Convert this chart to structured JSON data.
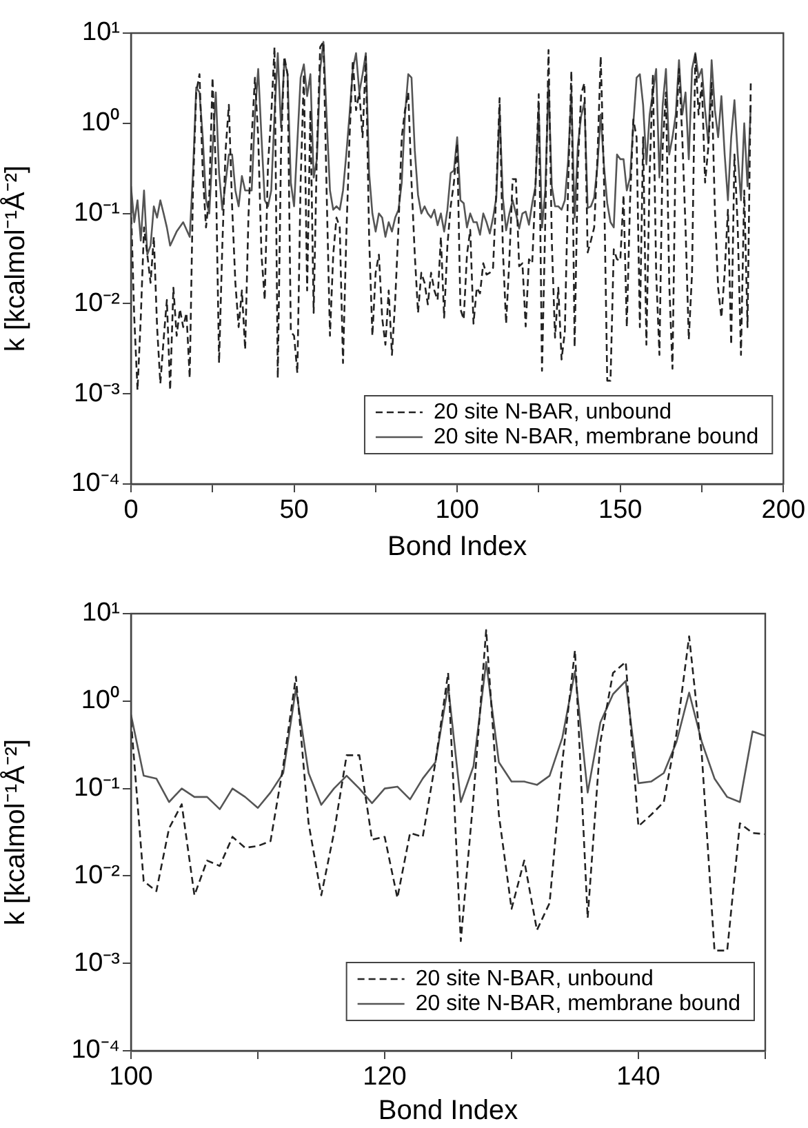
{
  "chart_data": [
    {
      "type": "line",
      "xlabel": "Bond Index",
      "ylabel": "k [kcalmol⁻¹Å⁻²]",
      "log": "y",
      "xlim": [
        0,
        200
      ],
      "ylim": [
        0.0001,
        10
      ],
      "xticks": [
        0,
        {
          "value": 25,
          "label": null
        },
        50,
        {
          "value": 75,
          "label": null
        },
        100,
        {
          "value": 125,
          "label": null
        },
        150,
        {
          "value": 175,
          "label": null
        },
        200
      ],
      "yticks": [
        {
          "value": 0.0001,
          "label": "10⁻⁴"
        },
        {
          "value": 0.001,
          "label": "10⁻³"
        },
        {
          "value": 0.01,
          "label": "10⁻²"
        },
        {
          "value": 0.1,
          "label": "10⁻¹"
        },
        {
          "value": 1,
          "label": "10⁰"
        },
        {
          "value": 10,
          "label": "10¹"
        }
      ],
      "grid": false,
      "legend": "bottom right",
      "marker": "none",
      "series": [
        {
          "name": "20 site N-BAR, unbound",
          "color": "#222222",
          "line_style": "dashed",
          "x": [
            0,
            1,
            2,
            3,
            4,
            5,
            6,
            7,
            8,
            9,
            10,
            11,
            12,
            13,
            14,
            15,
            16,
            17,
            18,
            19,
            20,
            21,
            22,
            23,
            24,
            25,
            26,
            27,
            28,
            29,
            30,
            31,
            32,
            33,
            34,
            35,
            36,
            37,
            38,
            39,
            40,
            41,
            42,
            43,
            44,
            45,
            46,
            47,
            48,
            49,
            50,
            51,
            52,
            53,
            54,
            55,
            56,
            57,
            58,
            59,
            60,
            61,
            62,
            63,
            64,
            65,
            66,
            67,
            68,
            69,
            70,
            71,
            72,
            73,
            74,
            75,
            76,
            77,
            78,
            79,
            80,
            81,
            82,
            83,
            84,
            85,
            86,
            87,
            88,
            89,
            90,
            91,
            92,
            93,
            94,
            95,
            96,
            97,
            98,
            99,
            100,
            101,
            102,
            103,
            104,
            105,
            106,
            107,
            108,
            109,
            110,
            111,
            112,
            113,
            114,
            115,
            116,
            117,
            118,
            119,
            120,
            121,
            122,
            123,
            124,
            125,
            126,
            127,
            128,
            129,
            130,
            131,
            132,
            133,
            134,
            135,
            136,
            137,
            138,
            139,
            140,
            141,
            142,
            143,
            144,
            145,
            146,
            147,
            148,
            149,
            150,
            151,
            152,
            153,
            154,
            155,
            156,
            157,
            158,
            159,
            160,
            161,
            162,
            163,
            164,
            165,
            166,
            167,
            168,
            169,
            170,
            171,
            172,
            173,
            174,
            175,
            176,
            177,
            178,
            179,
            180,
            181,
            182,
            183,
            184,
            185,
            186,
            187,
            188,
            189,
            190
          ],
          "values": [
            0.12,
            0.007,
            0.0011,
            0.007,
            0.07,
            0.035,
            0.017,
            0.055,
            0.0055,
            0.0013,
            0.004,
            0.011,
            0.0011,
            0.015,
            0.0044,
            0.0087,
            0.0055,
            0.0079,
            0.0015,
            0.18,
            2.2,
            3.5,
            0.28,
            0.07,
            0.16,
            3.2,
            0.31,
            0.0022,
            0.044,
            0.5,
            1.6,
            0.12,
            0.017,
            0.0055,
            0.014,
            0.0031,
            0.09,
            0.7,
            3.2,
            0.7,
            0.035,
            0.011,
            0.35,
            1.25,
            7,
            0.0015,
            0.5,
            5.5,
            3.5,
            0.0049,
            0.0044,
            0.0017,
            0.22,
            3.5,
            0.014,
            1.4,
            0.0079,
            0.5,
            7,
            8,
            0.16,
            0.0044,
            0.035,
            0.09,
            0.07,
            0.0022,
            0.055,
            0.7,
            5,
            1.4,
            2.2,
            0.7,
            5.5,
            0.055,
            0.0044,
            0.022,
            0.035,
            0.007,
            0.0035,
            0.014,
            0.0027,
            0.011,
            0.07,
            0.7,
            1.4,
            2.2,
            0.22,
            0.035,
            0.0079,
            0.022,
            0.017,
            0.0098,
            0.022,
            0.014,
            0.011,
            0.055,
            0.007,
            0.044,
            0.12,
            0.22,
            0.6,
            0.0087,
            0.0067,
            0.035,
            0.066,
            0.006,
            0.015,
            0.013,
            0.028,
            0.021,
            0.022,
            0.025,
            0.18,
            1.9,
            0.04,
            0.006,
            0.031,
            0.24,
            0.24,
            0.026,
            0.028,
            0.0056,
            0.031,
            0.028,
            0.2,
            2.1,
            0.0018,
            0.08,
            6.5,
            0.05,
            0.0042,
            0.015,
            0.0024,
            0.0049,
            0.2,
            3.8,
            0.0033,
            0.34,
            2.1,
            2.8,
            0.037,
            0.05,
            0.07,
            0.42,
            5.5,
            0.24,
            0.0014,
            0.0014,
            0.04,
            0.031,
            0.03,
            0.16,
            0.0055,
            0.14,
            1.1,
            0.7,
            0.0055,
            0.7,
            0.0035,
            0.28,
            3.5,
            0.022,
            0.0027,
            0.55,
            2.2,
            0.017,
            0.0019,
            0.7,
            4,
            0.7,
            0.07,
            0.004,
            0.022,
            6,
            1.25,
            2.8,
            0.22,
            0.55,
            2.8,
            0.11,
            0.015,
            0.007,
            0.022,
            0.11,
            0.0035,
            0.45,
            0.07,
            0.0027,
            0.18,
            0.0055,
            2.8
          ]
        },
        {
          "name": "20 site N-BAR, membrane bound",
          "color": "#555555",
          "line_style": "solid",
          "x": [
            0,
            1,
            2,
            3,
            4,
            5,
            6,
            7,
            8,
            9,
            10,
            11,
            12,
            14,
            16,
            18,
            19,
            20,
            21,
            22,
            23,
            24,
            25,
            26,
            27,
            28,
            29,
            30,
            31,
            32,
            33,
            34,
            35,
            36,
            37,
            38,
            39,
            40,
            41,
            42,
            43,
            44,
            45,
            46,
            47,
            48,
            49,
            50,
            52,
            53,
            54,
            55,
            56,
            57,
            58,
            59,
            60,
            61,
            62,
            63,
            64,
            65,
            66,
            67,
            68,
            69,
            70,
            71,
            72,
            73,
            74,
            75,
            76,
            77,
            78,
            79,
            80,
            81,
            82,
            83,
            84,
            85,
            86,
            87,
            88,
            89,
            90,
            91,
            92,
            93,
            94,
            95,
            96,
            97,
            98,
            99,
            100,
            101,
            102,
            103,
            104,
            105,
            106,
            107,
            108,
            109,
            110,
            111,
            112,
            113,
            114,
            115,
            116,
            117,
            118,
            119,
            120,
            121,
            122,
            123,
            124,
            125,
            126,
            127,
            128,
            129,
            130,
            131,
            132,
            133,
            134,
            135,
            136,
            137,
            138,
            139,
            140,
            141,
            142,
            143,
            144,
            145,
            146,
            147,
            148,
            149,
            150,
            151,
            152,
            153,
            154,
            155,
            156,
            157,
            158,
            159,
            160,
            161,
            162,
            163,
            164,
            165,
            166,
            167,
            168,
            169,
            170,
            171,
            172,
            173,
            174,
            175,
            176,
            177,
            178,
            179,
            180,
            181,
            182,
            183,
            184,
            185,
            186,
            187,
            188,
            189,
            190
          ],
          "values": [
            0.2,
            0.08,
            0.14,
            0.05,
            0.18,
            0.035,
            0.044,
            0.12,
            0.09,
            0.14,
            0.1,
            0.07,
            0.044,
            0.063,
            0.08,
            0.055,
            0.28,
            2.5,
            2.2,
            0.7,
            0.14,
            0.1,
            0.5,
            2.2,
            0.28,
            0.11,
            0.22,
            0.45,
            0.45,
            0.18,
            0.12,
            0.26,
            0.18,
            0.18,
            0.18,
            1.25,
            4,
            0.7,
            0.14,
            0.12,
            0.18,
            1.25,
            6,
            0.9,
            5,
            3.5,
            0.22,
            0.12,
            3.2,
            4.5,
            2,
            3.5,
            0.25,
            0.4,
            4,
            8,
            1.1,
            0.18,
            0.11,
            0.12,
            0.11,
            0.18,
            0.45,
            1.25,
            4,
            6,
            2.2,
            3.5,
            6,
            0.28,
            0.1,
            0.063,
            0.1,
            0.09,
            0.055,
            0.08,
            0.063,
            0.09,
            0.11,
            0.22,
            1.25,
            3.5,
            3.2,
            0.5,
            0.16,
            0.1,
            0.12,
            0.1,
            0.09,
            0.11,
            0.074,
            0.1,
            0.063,
            0.11,
            0.28,
            0.3,
            0.7,
            0.14,
            0.13,
            0.07,
            0.1,
            0.08,
            0.08,
            0.058,
            0.1,
            0.08,
            0.06,
            0.09,
            0.15,
            1.4,
            0.15,
            0.065,
            0.1,
            0.14,
            0.1,
            0.068,
            0.1,
            0.105,
            0.075,
            0.13,
            0.2,
            1.5,
            0.07,
            0.18,
            2.8,
            0.2,
            0.12,
            0.12,
            0.11,
            0.14,
            0.38,
            2.2,
            0.09,
            0.57,
            1.2,
            1.7,
            0.115,
            0.12,
            0.15,
            0.34,
            1.25,
            0.34,
            0.13,
            0.08,
            0.07,
            0.45,
            0.4,
            0.4,
            0.18,
            0.25,
            1,
            3.2,
            3.5,
            1.6,
            0.35,
            1.25,
            2.2,
            4,
            0.25,
            1.6,
            4,
            0.45,
            0.7,
            1.25,
            5,
            1.25,
            2.2,
            0.4,
            4,
            6,
            3.2,
            4,
            1.4,
            0.6,
            5,
            1.4,
            0.7,
            2,
            0.45,
            0.14,
            0.7,
            1.8,
            0.45,
            0.14,
            1,
            0.2,
            1.6
          ]
        }
      ]
    },
    {
      "type": "line",
      "xlabel": "Bond Index",
      "ylabel": "k [kcalmol⁻¹Å⁻²]",
      "log": "y",
      "xlim": [
        100,
        150
      ],
      "ylim": [
        0.0001,
        10
      ],
      "xticks": [
        100,
        {
          "value": 110,
          "label": null
        },
        120,
        {
          "value": 130,
          "label": null
        },
        140,
        {
          "value": 150,
          "label": null
        }
      ],
      "yticks": [
        {
          "value": 0.0001,
          "label": "10⁻⁴"
        },
        {
          "value": 0.001,
          "label": "10⁻³"
        },
        {
          "value": 0.01,
          "label": "10⁻²"
        },
        {
          "value": 0.1,
          "label": "10⁻¹"
        },
        {
          "value": 1,
          "label": "10⁰"
        },
        {
          "value": 10,
          "label": "10¹"
        }
      ],
      "grid": false,
      "legend": "bottom right",
      "marker": "none",
      "x": [
        100,
        101,
        102,
        103,
        104,
        105,
        106,
        107,
        108,
        109,
        110,
        111,
        112,
        113,
        114,
        115,
        116,
        117,
        118,
        119,
        120,
        121,
        122,
        123,
        124,
        125,
        126,
        127,
        128,
        129,
        130,
        131,
        132,
        133,
        134,
        135,
        136,
        137,
        138,
        139,
        140,
        141,
        142,
        143,
        144,
        145,
        146,
        147,
        148,
        149,
        150
      ],
      "series": [
        {
          "name": "20 site N-BAR, unbound",
          "color": "#222222",
          "line_style": "dashed",
          "values": [
            0.6,
            0.0087,
            0.0067,
            0.035,
            0.066,
            0.006,
            0.015,
            0.013,
            0.028,
            0.021,
            0.022,
            0.025,
            0.18,
            1.9,
            0.04,
            0.006,
            0.031,
            0.24,
            0.24,
            0.026,
            0.028,
            0.0056,
            0.031,
            0.028,
            0.2,
            2.1,
            0.0018,
            0.08,
            6.5,
            0.05,
            0.0042,
            0.015,
            0.0024,
            0.0049,
            0.2,
            3.8,
            0.0033,
            0.34,
            2.1,
            2.8,
            0.037,
            0.05,
            0.07,
            0.42,
            5.5,
            0.24,
            0.0014,
            0.0014,
            0.04,
            0.031,
            0.03
          ]
        },
        {
          "name": "20 site N-BAR, membrane bound",
          "color": "#555555",
          "line_style": "solid",
          "values": [
            0.7,
            0.14,
            0.13,
            0.07,
            0.1,
            0.08,
            0.08,
            0.058,
            0.1,
            0.08,
            0.06,
            0.09,
            0.15,
            1.4,
            0.15,
            0.065,
            0.1,
            0.14,
            0.1,
            0.068,
            0.1,
            0.105,
            0.075,
            0.13,
            0.2,
            1.5,
            0.07,
            0.18,
            2.8,
            0.2,
            0.12,
            0.12,
            0.11,
            0.14,
            0.38,
            2.2,
            0.09,
            0.57,
            1.2,
            1.7,
            0.115,
            0.12,
            0.15,
            0.34,
            1.25,
            0.34,
            0.13,
            0.08,
            0.07,
            0.45,
            0.4
          ]
        }
      ]
    }
  ]
}
